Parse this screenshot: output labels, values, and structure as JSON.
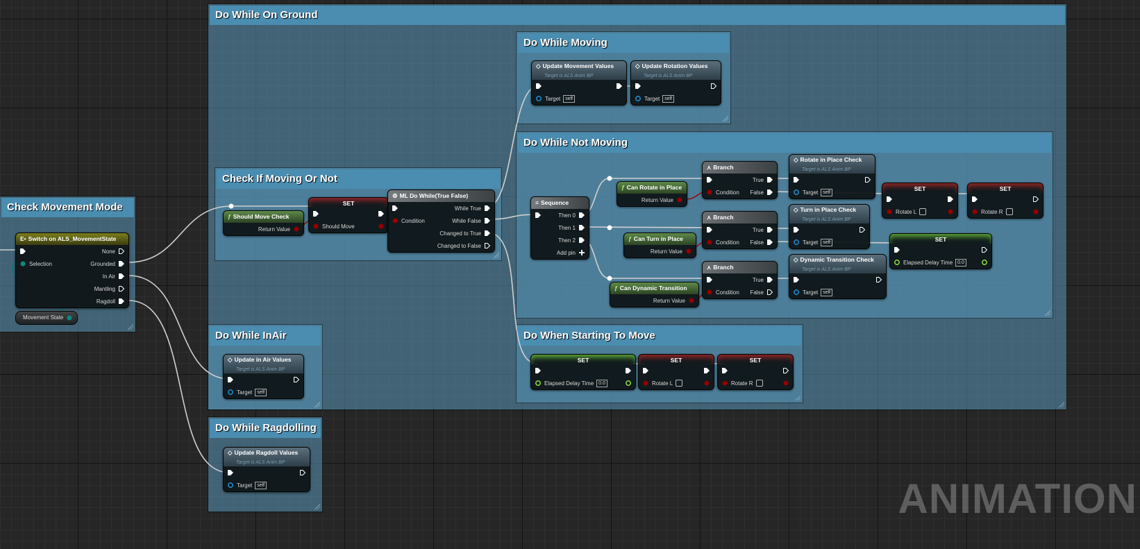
{
  "watermark": "ANIMATION",
  "comments": [
    {
      "id": "c_ground",
      "title": "Do While On Ground"
    },
    {
      "id": "c_mode",
      "title": "Check Movement Mode"
    },
    {
      "id": "c_check",
      "title": "Check If Moving Or Not"
    },
    {
      "id": "c_moving",
      "title": "Do While Moving"
    },
    {
      "id": "c_notmoving",
      "title": "Do While Not Moving"
    },
    {
      "id": "c_inair",
      "title": "Do While InAir"
    },
    {
      "id": "c_start",
      "title": "Do When Starting To Move"
    },
    {
      "id": "c_ragdoll",
      "title": "Do While Ragdolling"
    }
  ],
  "getter": {
    "label": "Movement State"
  },
  "pin_colors": {
    "exec": "#ffffff",
    "bool": "#950000",
    "object": "#1e8fd6",
    "float": "#8fe03a",
    "enum": "#0b8a7e"
  },
  "nodes": [
    {
      "id": "switch",
      "style": "switch",
      "icon": "switch-icon",
      "title": "Switch on ALS_MovementState",
      "rows": [
        [
          {
            "k": "exec",
            "l": ""
          },
          {
            "k": "exec_open",
            "l": "None"
          }
        ],
        [
          {
            "k": "enum",
            "l": "Selection"
          },
          {
            "k": "exec",
            "l": "Grounded"
          }
        ],
        [
          null,
          {
            "k": "exec",
            "l": "In Air"
          }
        ],
        [
          null,
          {
            "k": "exec_open",
            "l": "Mantling"
          }
        ],
        [
          null,
          {
            "k": "exec",
            "l": "Ragdoll"
          }
        ]
      ]
    },
    {
      "id": "shouldmove",
      "style": "pure",
      "icon": "function-icon",
      "title": "Should Move Check",
      "rows": [
        [
          null,
          {
            "k": "bool",
            "l": "Return Value"
          }
        ]
      ]
    },
    {
      "id": "set_should",
      "style": "set-red",
      "title": "SET",
      "rows": [
        [
          {
            "k": "exec",
            "l": ""
          },
          {
            "k": "exec",
            "l": ""
          }
        ],
        [
          {
            "k": "bool",
            "l": "Should Move"
          },
          {
            "k": "bool",
            "l": ""
          }
        ]
      ]
    },
    {
      "id": "dowhile",
      "style": "macro",
      "icon": "macro-gear-icon",
      "title": "ML Do While(True False)",
      "rows": [
        [
          {
            "k": "exec",
            "l": ""
          },
          {
            "k": "exec",
            "l": "While True"
          }
        ],
        [
          {
            "k": "bool",
            "l": "Condition"
          },
          {
            "k": "exec",
            "l": "While False"
          }
        ],
        [
          null,
          {
            "k": "exec",
            "l": "Changed to True"
          }
        ],
        [
          null,
          {
            "k": "exec_open",
            "l": "Changed to False"
          }
        ]
      ]
    },
    {
      "id": "upd_move",
      "style": "call",
      "icon": "call-function-icon",
      "title": "Update Movement Values",
      "subtitle": "Target is ALS Anim BP",
      "rows": [
        [
          {
            "k": "exec",
            "l": ""
          },
          {
            "k": "exec",
            "l": ""
          }
        ],
        [
          {
            "k": "object",
            "l": "Target",
            "v": "self"
          },
          null
        ]
      ]
    },
    {
      "id": "upd_rot",
      "style": "call",
      "icon": "call-function-icon",
      "title": "Update Rotation Values",
      "subtitle": "Target is ALS Anim BP",
      "rows": [
        [
          {
            "k": "exec",
            "l": ""
          },
          {
            "k": "exec_open",
            "l": ""
          }
        ],
        [
          {
            "k": "object",
            "l": "Target",
            "v": "self"
          },
          null
        ]
      ]
    },
    {
      "id": "sequence",
      "style": "macro",
      "icon": "sequence-icon",
      "title": "Sequence",
      "rows": [
        [
          {
            "k": "exec",
            "l": ""
          },
          {
            "k": "exec",
            "l": "Then 0"
          }
        ],
        [
          null,
          {
            "k": "exec",
            "l": "Then 1"
          }
        ],
        [
          null,
          {
            "k": "exec",
            "l": "Then 2"
          }
        ],
        [
          null,
          {
            "k": "add",
            "l": "Add pin"
          }
        ]
      ]
    },
    {
      "id": "canrot",
      "style": "pure",
      "icon": "function-icon",
      "title": "Can Rotate in Place",
      "rows": [
        [
          null,
          {
            "k": "bool",
            "l": "Return Value"
          }
        ]
      ]
    },
    {
      "id": "branch1",
      "style": "branch",
      "icon": "branch-icon",
      "title": "Branch",
      "rows": [
        [
          {
            "k": "exec",
            "l": ""
          },
          {
            "k": "exec",
            "l": "True"
          }
        ],
        [
          {
            "k": "bool",
            "l": "Condition"
          },
          {
            "k": "exec",
            "l": "False"
          }
        ]
      ]
    },
    {
      "id": "canturn",
      "style": "pure",
      "icon": "function-icon",
      "title": "Can Turn in Place",
      "rows": [
        [
          null,
          {
            "k": "bool",
            "l": "Return Value"
          }
        ]
      ]
    },
    {
      "id": "branch2",
      "style": "branch",
      "icon": "branch-icon",
      "title": "Branch",
      "rows": [
        [
          {
            "k": "exec",
            "l": ""
          },
          {
            "k": "exec",
            "l": "True"
          }
        ],
        [
          {
            "k": "bool",
            "l": "Condition"
          },
          {
            "k": "exec",
            "l": "False"
          }
        ]
      ]
    },
    {
      "id": "candyn",
      "style": "pure",
      "icon": "function-icon",
      "title": "Can Dynamic Transition",
      "rows": [
        [
          null,
          {
            "k": "bool",
            "l": "Return Value"
          }
        ]
      ]
    },
    {
      "id": "branch3",
      "style": "branch",
      "icon": "branch-icon",
      "title": "Branch",
      "rows": [
        [
          {
            "k": "exec",
            "l": ""
          },
          {
            "k": "exec",
            "l": "True"
          }
        ],
        [
          {
            "k": "bool",
            "l": "Condition"
          },
          {
            "k": "exec_open",
            "l": "False"
          }
        ]
      ]
    },
    {
      "id": "ripcheck",
      "style": "call",
      "icon": "call-function-icon",
      "title": "Rotate in Place Check",
      "subtitle": "Target is ALS Anim BP",
      "rows": [
        [
          {
            "k": "exec",
            "l": ""
          },
          {
            "k": "exec_open",
            "l": ""
          }
        ],
        [
          {
            "k": "object",
            "l": "Target",
            "v": "self"
          },
          null
        ]
      ]
    },
    {
      "id": "tipcheck",
      "style": "call",
      "icon": "call-function-icon",
      "title": "Turn in Place Check",
      "subtitle": "Target is ALS Anim BP",
      "rows": [
        [
          {
            "k": "exec",
            "l": ""
          },
          {
            "k": "exec_open",
            "l": ""
          }
        ],
        [
          {
            "k": "object",
            "l": "Target",
            "v": "self"
          },
          null
        ]
      ]
    },
    {
      "id": "dtcheck",
      "style": "call",
      "icon": "call-function-icon",
      "title": "Dynamic Transition Check",
      "subtitle": "Target is ALS Anim BP",
      "rows": [
        [
          {
            "k": "exec",
            "l": ""
          },
          {
            "k": "exec_open",
            "l": ""
          }
        ],
        [
          {
            "k": "object",
            "l": "Target",
            "v": "self"
          },
          null
        ]
      ]
    },
    {
      "id": "set_rl",
      "style": "set-red",
      "title": "SET",
      "rows": [
        [
          {
            "k": "exec",
            "l": ""
          },
          {
            "k": "exec",
            "l": ""
          }
        ],
        [
          {
            "k": "bool",
            "l": "Rotate L",
            "c": true
          },
          {
            "k": "bool",
            "l": ""
          }
        ]
      ]
    },
    {
      "id": "set_rr",
      "style": "set-red",
      "title": "SET",
      "rows": [
        [
          {
            "k": "exec",
            "l": ""
          },
          {
            "k": "exec_open",
            "l": ""
          }
        ],
        [
          {
            "k": "bool",
            "l": "Rotate R",
            "c": true
          },
          {
            "k": "bool",
            "l": ""
          }
        ]
      ]
    },
    {
      "id": "set_edt",
      "style": "set-green",
      "title": "SET",
      "rows": [
        [
          {
            "k": "exec",
            "l": ""
          },
          {
            "k": "exec_open",
            "l": ""
          }
        ],
        [
          {
            "k": "float",
            "l": "Elapsed Delay Time",
            "v": "0.0"
          },
          {
            "k": "float",
            "l": ""
          }
        ]
      ]
    },
    {
      "id": "upd_air",
      "style": "call",
      "icon": "call-function-icon",
      "title": "Update in Air Values",
      "subtitle": "Target is ALS Anim BP",
      "rows": [
        [
          {
            "k": "exec",
            "l": ""
          },
          {
            "k": "exec_open",
            "l": ""
          }
        ],
        [
          {
            "k": "object",
            "l": "Target",
            "v": "self"
          },
          null
        ]
      ]
    },
    {
      "id": "set_edt2",
      "style": "set-green",
      "title": "SET",
      "rows": [
        [
          {
            "k": "exec",
            "l": ""
          },
          {
            "k": "exec",
            "l": ""
          }
        ],
        [
          {
            "k": "float",
            "l": "Elapsed Delay Time",
            "v": "0.0"
          },
          {
            "k": "float",
            "l": ""
          }
        ]
      ]
    },
    {
      "id": "set_rl2",
      "style": "set-red",
      "title": "SET",
      "rows": [
        [
          {
            "k": "exec",
            "l": ""
          },
          {
            "k": "exec",
            "l": ""
          }
        ],
        [
          {
            "k": "bool",
            "l": "Rotate L",
            "c": true
          },
          {
            "k": "bool",
            "l": ""
          }
        ]
      ]
    },
    {
      "id": "set_rr2",
      "style": "set-red",
      "title": "SET",
      "rows": [
        [
          {
            "k": "exec",
            "l": ""
          },
          {
            "k": "exec_open",
            "l": ""
          }
        ],
        [
          {
            "k": "bool",
            "l": "Rotate R",
            "c": true
          },
          {
            "k": "bool",
            "l": ""
          }
        ]
      ]
    },
    {
      "id": "upd_rag",
      "style": "call",
      "icon": "call-function-icon",
      "title": "Update Ragdoll Values",
      "subtitle": "Target is ALS Anim BP",
      "rows": [
        [
          {
            "k": "exec",
            "l": ""
          },
          {
            "k": "exec_open",
            "l": ""
          }
        ],
        [
          {
            "k": "object",
            "l": "Target",
            "v": "self"
          },
          null
        ]
      ]
    }
  ]
}
